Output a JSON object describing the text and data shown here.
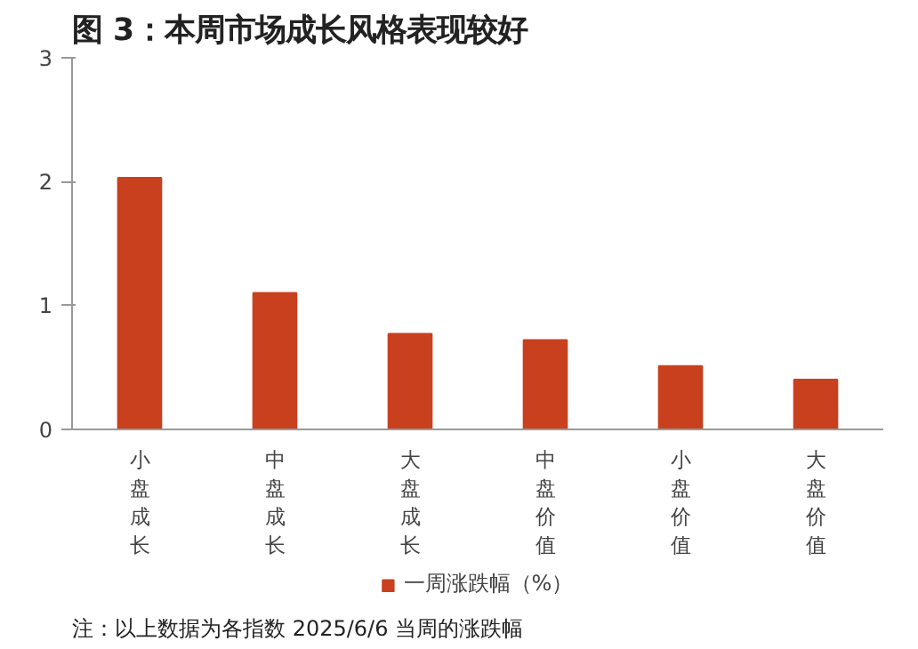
{
  "chart_data": {
    "type": "bar",
    "title": "图 3：本周市场成长风格表现较好",
    "categories": [
      "小盘成长",
      "中盘成长",
      "大盘成长",
      "中盘价值",
      "小盘价值",
      "大盘价值"
    ],
    "series": [
      {
        "name": "一周涨跌幅（%）",
        "color": "#c9401f",
        "values": [
          2.03,
          1.1,
          0.77,
          0.72,
          0.51,
          0.4
        ]
      }
    ],
    "ylim": [
      0,
      3
    ],
    "yticks": [
      0,
      1,
      2,
      3
    ],
    "grid": false,
    "legend": "bottom",
    "annotations": [
      "注：以上数据为各指数 2025/6/6 当周的涨跌幅"
    ]
  }
}
